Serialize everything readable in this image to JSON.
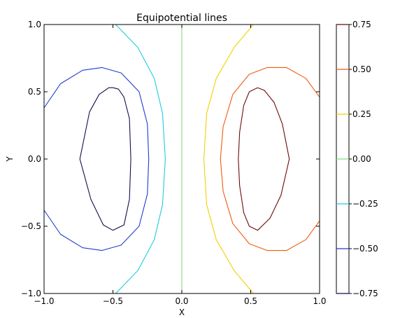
{
  "chart_data": {
    "type": "contour",
    "title": "Equipotential lines",
    "xlabel": "X",
    "ylabel": "Y",
    "xlim": [
      -1.0,
      1.0
    ],
    "ylim": [
      -1.0,
      1.0
    ],
    "x_ticks": [
      -1.0,
      -0.5,
      0.0,
      0.5,
      1.0
    ],
    "x_tick_labels": [
      "−1.0",
      "−0.5",
      "0.0",
      "0.5",
      "1.0"
    ],
    "y_ticks": [
      -1.0,
      -0.5,
      0.0,
      0.5,
      1.0
    ],
    "y_tick_labels": [
      "−1.0",
      "−0.5",
      "0.0",
      "0.5",
      "1.0"
    ],
    "grid": false,
    "colorbar": {
      "ticks": [
        -0.75,
        -0.5,
        -0.25,
        0.0,
        0.25,
        0.5,
        0.75
      ],
      "tick_labels": [
        "−0.75",
        "−0.50",
        "−0.25",
        "0.00",
        "0.25",
        "0.50",
        "0.75"
      ]
    },
    "levels": [
      {
        "level": -0.75,
        "color": "#1a0b4a",
        "paths": [
          [
            [
              -0.5,
              0.53
            ],
            [
              -0.46,
              0.52
            ],
            [
              -0.42,
              0.46
            ],
            [
              -0.38,
              0.3
            ],
            [
              -0.37,
              0.0
            ],
            [
              -0.38,
              -0.3
            ],
            [
              -0.42,
              -0.49
            ],
            [
              -0.5,
              -0.53
            ],
            [
              -0.57,
              -0.49
            ],
            [
              -0.66,
              -0.3
            ],
            [
              -0.74,
              0.0
            ],
            [
              -0.67,
              0.35
            ],
            [
              -0.6,
              0.48
            ],
            [
              -0.53,
              0.53
            ],
            [
              -0.5,
              0.53
            ]
          ]
        ]
      },
      {
        "level": -0.5,
        "color": "#1e3ccc",
        "paths": [
          [
            [
              -1.0,
              0.38
            ],
            [
              -0.88,
              0.56
            ],
            [
              -0.72,
              0.66
            ],
            [
              -0.58,
              0.68
            ],
            [
              -0.44,
              0.64
            ],
            [
              -0.31,
              0.5
            ],
            [
              -0.25,
              0.26
            ],
            [
              -0.24,
              0.0
            ],
            [
              -0.25,
              -0.26
            ],
            [
              -0.31,
              -0.5
            ],
            [
              -0.44,
              -0.64
            ],
            [
              -0.58,
              -0.68
            ],
            [
              -0.72,
              -0.66
            ],
            [
              -0.88,
              -0.56
            ],
            [
              -1.0,
              -0.38
            ]
          ]
        ]
      },
      {
        "level": -0.25,
        "color": "#1fcbe0",
        "paths": [
          [
            [
              -0.48,
              1.0
            ],
            [
              -0.32,
              0.83
            ],
            [
              -0.2,
              0.6
            ],
            [
              -0.14,
              0.34
            ],
            [
              -0.12,
              0.0
            ],
            [
              -0.14,
              -0.34
            ],
            [
              -0.2,
              -0.6
            ],
            [
              -0.32,
              -0.83
            ],
            [
              -0.48,
              -1.0
            ]
          ]
        ]
      },
      {
        "level": 0.0,
        "color": "#7fe07f",
        "paths": [
          [
            [
              0.0,
              1.0
            ],
            [
              0.0,
              -1.0
            ]
          ]
        ]
      },
      {
        "level": 0.25,
        "color": "#f5d000",
        "paths": [
          [
            [
              0.52,
              1.0
            ],
            [
              0.38,
              0.83
            ],
            [
              0.25,
              0.6
            ],
            [
              0.18,
              0.34
            ],
            [
              0.16,
              0.0
            ],
            [
              0.18,
              -0.34
            ],
            [
              0.25,
              -0.6
            ],
            [
              0.38,
              -0.83
            ],
            [
              0.52,
              -1.0
            ]
          ]
        ]
      },
      {
        "level": 0.5,
        "color": "#f05a10",
        "paths": [
          [
            [
              1.0,
              0.46
            ],
            [
              0.9,
              0.6
            ],
            [
              0.76,
              0.68
            ],
            [
              0.62,
              0.68
            ],
            [
              0.49,
              0.63
            ],
            [
              0.37,
              0.48
            ],
            [
              0.3,
              0.24
            ],
            [
              0.28,
              0.0
            ],
            [
              0.3,
              -0.24
            ],
            [
              0.37,
              -0.48
            ],
            [
              0.49,
              -0.63
            ],
            [
              0.62,
              -0.68
            ],
            [
              0.76,
              -0.68
            ],
            [
              0.9,
              -0.6
            ],
            [
              1.0,
              -0.46
            ]
          ]
        ]
      },
      {
        "level": 0.75,
        "color": "#6b0a0a",
        "paths": [
          [
            [
              0.55,
              0.53
            ],
            [
              0.6,
              0.51
            ],
            [
              0.67,
              0.42
            ],
            [
              0.73,
              0.26
            ],
            [
              0.78,
              0.0
            ],
            [
              0.72,
              -0.27
            ],
            [
              0.64,
              -0.44
            ],
            [
              0.55,
              -0.53
            ],
            [
              0.49,
              -0.5
            ],
            [
              0.45,
              -0.4
            ],
            [
              0.42,
              -0.2
            ],
            [
              0.41,
              0.0
            ],
            [
              0.42,
              0.2
            ],
            [
              0.45,
              0.4
            ],
            [
              0.49,
              0.5
            ],
            [
              0.55,
              0.53
            ]
          ]
        ]
      }
    ]
  }
}
